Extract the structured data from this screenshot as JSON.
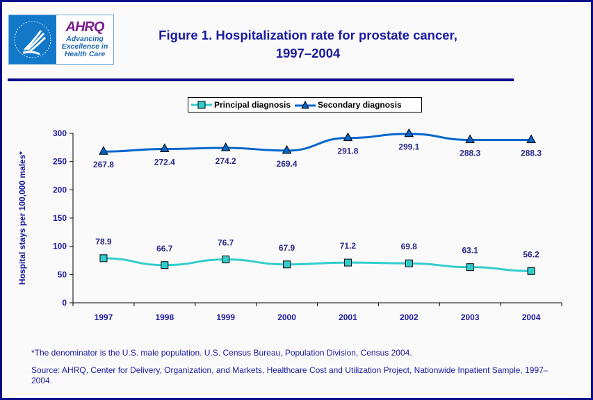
{
  "logo": {
    "org": "AHRQ",
    "tagline": "Advancing Excellence in Health Care",
    "seal": "Department of Health & Human Services USA"
  },
  "title_line1": "Figure 1. Hospitalization rate for prostate cancer,",
  "title_line2": "1997–2004",
  "chart_data": {
    "type": "line",
    "categories": [
      "1997",
      "1998",
      "1999",
      "2000",
      "2001",
      "2002",
      "2003",
      "2004"
    ],
    "series": [
      {
        "name": "Principal diagnosis",
        "color": "#33cccc",
        "marker": "square",
        "values": [
          78.9,
          66.7,
          76.7,
          67.9,
          71.2,
          69.8,
          63.1,
          56.2
        ],
        "labels": [
          "78.9",
          "66.7",
          "76.7",
          "67.9",
          "71.2",
          "69.8",
          "63.1",
          "56.2"
        ]
      },
      {
        "name": "Secondary diagnosis",
        "color": "#0066cc",
        "marker": "triangle",
        "values": [
          267.8,
          272.4,
          274.2,
          269.4,
          291.8,
          299.1,
          288.3,
          288.3
        ],
        "labels": [
          "267.8",
          "272.4",
          "274.2",
          "269.4",
          "291.8",
          "299.1",
          "288.3",
          "288.3"
        ]
      }
    ],
    "ylabel": "Hospital stays  per 100,000 males*",
    "xlabel": "",
    "ylim": [
      0,
      300
    ],
    "yticks": [
      "0",
      "50",
      "100",
      "150",
      "200",
      "250",
      "300"
    ],
    "grid": false,
    "legend": "top"
  },
  "footnote": "*The denominator is the U.S. male population. U.S. Census Bureau, Population Division, Census 2004.",
  "source": "Source: AHRQ, Center for Delivery, Organization, and Markets, Healthcare Cost and Utilization Project, Nationwide Inpatient Sample, 1997–2004."
}
